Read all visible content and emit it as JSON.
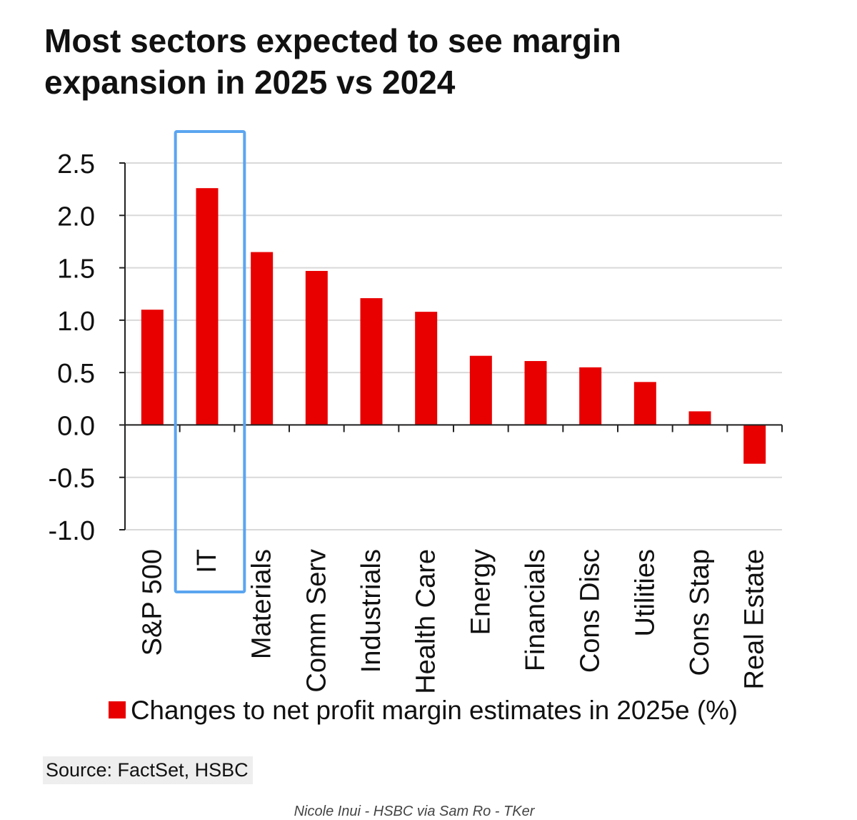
{
  "title_lines": [
    "Most sectors expected to see margin",
    "expansion in 2025 vs 2024"
  ],
  "source": "Source: FactSet, HSBC",
  "credit": "Nicole Inui - HSBC via Sam Ro - TKer",
  "colors": {
    "bar": "#e80000",
    "highlight": "#5aa5f0",
    "grid": "#d9d9d9",
    "axis": "#222222"
  },
  "highlighted_category": "IT",
  "chart_data": {
    "type": "bar",
    "title": "Most sectors expected to see margin expansion in 2025 vs 2024",
    "categories": [
      "S&P 500",
      "IT",
      "Materials",
      "Comm Serv",
      "Industrials",
      "Health Care",
      "Energy",
      "Financials",
      "Cons Disc",
      "Utilities",
      "Cons Stap",
      "Real Estate"
    ],
    "series": [
      {
        "name": "Changes to net profit margin estimates in 2025e (%)",
        "values": [
          1.1,
          2.26,
          1.65,
          1.47,
          1.21,
          1.08,
          0.66,
          0.61,
          0.55,
          0.41,
          0.13,
          -0.37
        ]
      }
    ],
    "ylim": [
      -1.0,
      2.5
    ],
    "yticks": [
      "-1.0",
      "-0.5",
      "0.0",
      "0.5",
      "1.0",
      "1.5",
      "2.0",
      "2.5"
    ],
    "xlabel": "",
    "ylabel": "",
    "grid": true,
    "legend": "bottom"
  }
}
